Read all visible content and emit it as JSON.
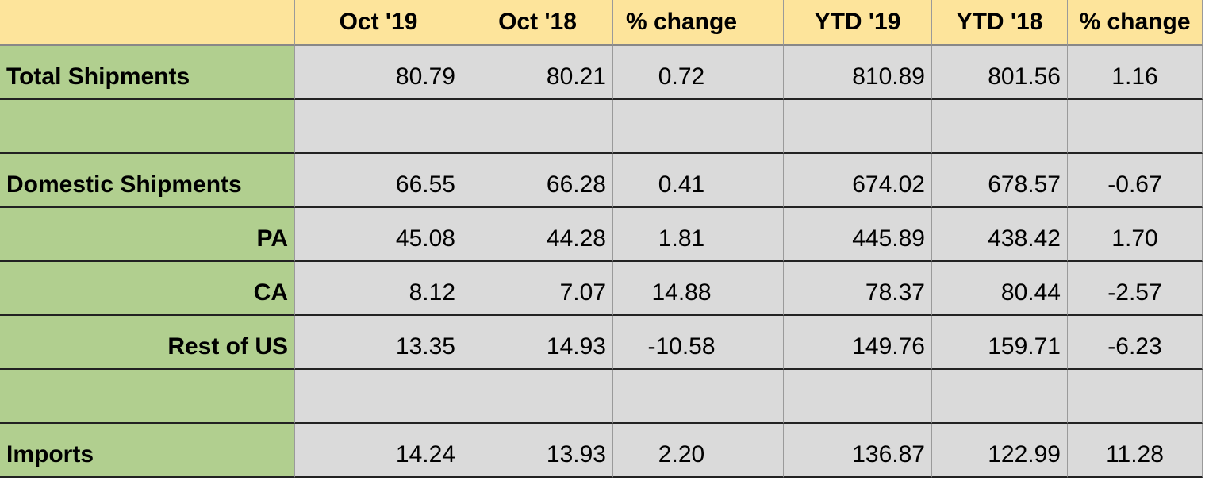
{
  "table": {
    "header": [
      "Oct '19",
      "Oct '18",
      "% change",
      "YTD '19",
      "YTD '18",
      "% change"
    ],
    "rows": [
      {
        "label": "Total Shipments",
        "values": [
          "80.79",
          "80.21",
          "0.72",
          "810.89",
          "801.56",
          "1.16"
        ]
      },
      {
        "label": "Domestic Shipments",
        "values": [
          "66.55",
          "66.28",
          "0.41",
          "674.02",
          "678.57",
          "-0.67"
        ]
      },
      {
        "label": "PA",
        "values": [
          "45.08",
          "44.28",
          "1.81",
          "445.89",
          "438.42",
          "1.70"
        ]
      },
      {
        "label": "CA",
        "values": [
          "8.12",
          "7.07",
          "14.88",
          "78.37",
          "80.44",
          "-2.57"
        ]
      },
      {
        "label": "Rest of US",
        "values": [
          "13.35",
          "14.93",
          "-10.58",
          "149.76",
          "159.71",
          "-6.23"
        ]
      },
      {
        "label": "Imports",
        "values": [
          "14.24",
          "13.93",
          "2.20",
          "136.87",
          "122.99",
          "11.28"
        ]
      }
    ]
  }
}
